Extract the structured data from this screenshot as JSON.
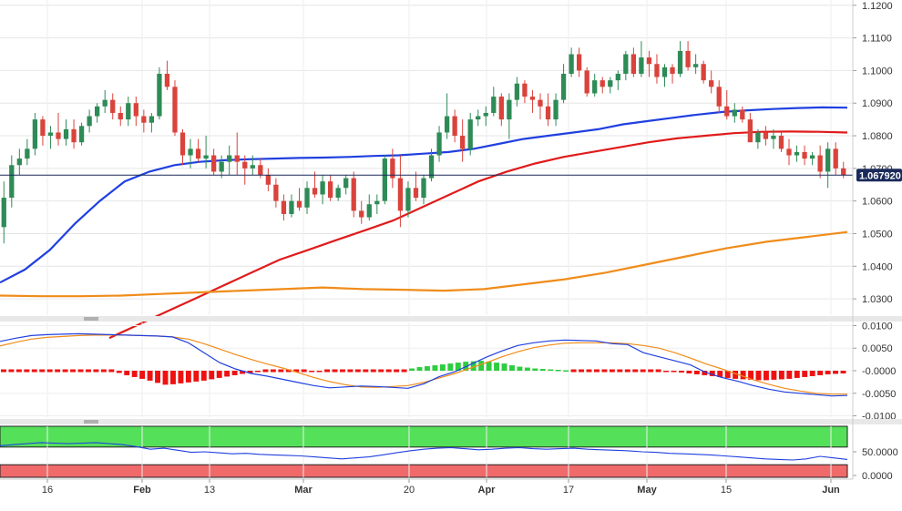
{
  "chart_data": [
    {
      "type": "candlestick",
      "title": "",
      "yaxis_position": "right",
      "ylim": [
        1.025,
        1.1205
      ],
      "ytick_labels": [
        "1.1200",
        "1.1100",
        "1.1000",
        "1.0900",
        "1.0800",
        "1.0700",
        "1.0600",
        "1.0500",
        "1.0400",
        "1.0300"
      ],
      "ytick_values": [
        1.12,
        1.11,
        1.1,
        1.09,
        1.08,
        1.07,
        1.06,
        1.05,
        1.04,
        1.03
      ],
      "current_price": 1.06792,
      "current_price_label": "1.067920",
      "bull_color": "#2e8b57",
      "bear_color": "#d9433b",
      "candles_ohlc": [
        [
          1.052,
          1.066,
          1.047,
          1.061
        ],
        [
          1.061,
          1.074,
          1.058,
          1.071
        ],
        [
          1.071,
          1.076,
          1.068,
          1.073
        ],
        [
          1.073,
          1.079,
          1.071,
          1.076
        ],
        [
          1.076,
          1.087,
          1.074,
          1.085
        ],
        [
          1.085,
          1.086,
          1.077,
          1.08
        ],
        [
          1.08,
          1.083,
          1.076,
          1.081
        ],
        [
          1.081,
          1.087,
          1.077,
          1.079
        ],
        [
          1.079,
          1.085,
          1.077,
          1.082
        ],
        [
          1.082,
          1.085,
          1.076,
          1.078
        ],
        [
          1.078,
          1.084,
          1.077,
          1.083
        ],
        [
          1.083,
          1.088,
          1.081,
          1.086
        ],
        [
          1.086,
          1.09,
          1.084,
          1.089
        ],
        [
          1.089,
          1.094,
          1.087,
          1.091
        ],
        [
          1.091,
          1.093,
          1.085,
          1.087
        ],
        [
          1.087,
          1.089,
          1.083,
          1.085
        ],
        [
          1.085,
          1.092,
          1.083,
          1.09
        ],
        [
          1.09,
          1.092,
          1.083,
          1.086
        ],
        [
          1.086,
          1.088,
          1.081,
          1.084
        ],
        [
          1.084,
          1.087,
          1.081,
          1.086
        ],
        [
          1.086,
          1.101,
          1.085,
          1.099
        ],
        [
          1.099,
          1.103,
          1.094,
          1.095
        ],
        [
          1.095,
          1.097,
          1.08,
          1.081
        ],
        [
          1.081,
          1.082,
          1.071,
          1.074
        ],
        [
          1.074,
          1.079,
          1.07,
          1.076
        ],
        [
          1.076,
          1.079,
          1.072,
          1.073
        ],
        [
          1.073,
          1.08,
          1.07,
          1.074
        ],
        [
          1.074,
          1.076,
          1.068,
          1.069
        ],
        [
          1.069,
          1.074,
          1.067,
          1.072
        ],
        [
          1.072,
          1.077,
          1.068,
          1.074
        ],
        [
          1.074,
          1.081,
          1.068,
          1.072
        ],
        [
          1.072,
          1.074,
          1.065,
          1.07
        ],
        [
          1.07,
          1.074,
          1.068,
          1.071
        ],
        [
          1.071,
          1.073,
          1.067,
          1.068
        ],
        [
          1.068,
          1.07,
          1.063,
          1.065
        ],
        [
          1.065,
          1.067,
          1.058,
          1.06
        ],
        [
          1.06,
          1.062,
          1.054,
          1.056
        ],
        [
          1.056,
          1.062,
          1.055,
          1.06
        ],
        [
          1.06,
          1.064,
          1.057,
          1.058
        ],
        [
          1.058,
          1.066,
          1.056,
          1.064
        ],
        [
          1.064,
          1.069,
          1.061,
          1.062
        ],
        [
          1.062,
          1.068,
          1.059,
          1.066
        ],
        [
          1.066,
          1.068,
          1.06,
          1.061
        ],
        [
          1.061,
          1.065,
          1.06,
          1.064
        ],
        [
          1.064,
          1.068,
          1.062,
          1.067
        ],
        [
          1.067,
          1.069,
          1.055,
          1.057
        ],
        [
          1.057,
          1.06,
          1.053,
          1.055
        ],
        [
          1.055,
          1.062,
          1.054,
          1.059
        ],
        [
          1.059,
          1.062,
          1.056,
          1.06
        ],
        [
          1.06,
          1.074,
          1.059,
          1.073
        ],
        [
          1.073,
          1.076,
          1.064,
          1.067
        ],
        [
          1.067,
          1.074,
          1.052,
          1.057
        ],
        [
          1.057,
          1.066,
          1.055,
          1.064
        ],
        [
          1.064,
          1.069,
          1.06,
          1.061
        ],
        [
          1.061,
          1.068,
          1.059,
          1.067
        ],
        [
          1.067,
          1.076,
          1.066,
          1.074
        ],
        [
          1.074,
          1.083,
          1.072,
          1.081
        ],
        [
          1.081,
          1.093,
          1.079,
          1.086
        ],
        [
          1.086,
          1.088,
          1.078,
          1.08
        ],
        [
          1.08,
          1.085,
          1.072,
          1.076
        ],
        [
          1.076,
          1.087,
          1.074,
          1.085
        ],
        [
          1.085,
          1.088,
          1.083,
          1.086
        ],
        [
          1.086,
          1.089,
          1.083,
          1.087
        ],
        [
          1.087,
          1.095,
          1.086,
          1.092
        ],
        [
          1.092,
          1.093,
          1.083,
          1.085
        ],
        [
          1.085,
          1.093,
          1.079,
          1.091
        ],
        [
          1.091,
          1.098,
          1.089,
          1.096
        ],
        [
          1.096,
          1.097,
          1.09,
          1.092
        ],
        [
          1.092,
          1.094,
          1.087,
          1.091
        ],
        [
          1.091,
          1.093,
          1.085,
          1.089
        ],
        [
          1.089,
          1.093,
          1.083,
          1.085
        ],
        [
          1.085,
          1.093,
          1.083,
          1.091
        ],
        [
          1.091,
          1.102,
          1.09,
          1.099
        ],
        [
          1.099,
          1.107,
          1.098,
          1.105
        ],
        [
          1.105,
          1.107,
          1.098,
          1.1
        ],
        [
          1.1,
          1.101,
          1.092,
          1.093
        ],
        [
          1.093,
          1.099,
          1.092,
          1.097
        ],
        [
          1.097,
          1.098,
          1.093,
          1.095
        ],
        [
          1.095,
          1.098,
          1.093,
          1.097
        ],
        [
          1.097,
          1.1,
          1.094,
          1.099
        ],
        [
          1.099,
          1.106,
          1.097,
          1.105
        ],
        [
          1.105,
          1.107,
          1.098,
          1.099
        ],
        [
          1.099,
          1.109,
          1.098,
          1.104
        ],
        [
          1.104,
          1.106,
          1.098,
          1.102
        ],
        [
          1.102,
          1.105,
          1.096,
          1.098
        ],
        [
          1.098,
          1.102,
          1.095,
          1.101
        ],
        [
          1.101,
          1.102,
          1.096,
          1.099
        ],
        [
          1.099,
          1.109,
          1.098,
          1.106
        ],
        [
          1.106,
          1.109,
          1.1,
          1.101
        ],
        [
          1.101,
          1.105,
          1.099,
          1.102
        ],
        [
          1.102,
          1.103,
          1.096,
          1.097
        ],
        [
          1.097,
          1.1,
          1.093,
          1.095
        ],
        [
          1.095,
          1.097,
          1.087,
          1.089
        ],
        [
          1.089,
          1.094,
          1.085,
          1.086
        ],
        [
          1.086,
          1.09,
          1.084,
          1.088
        ],
        [
          1.088,
          1.089,
          1.084,
          1.085
        ],
        [
          1.085,
          1.087,
          1.079,
          1.078
        ],
        [
          1.078,
          1.082,
          1.076,
          1.081
        ],
        [
          1.081,
          1.083,
          1.077,
          1.079
        ],
        [
          1.079,
          1.082,
          1.076,
          1.08
        ],
        [
          1.08,
          1.081,
          1.075,
          1.076
        ],
        [
          1.076,
          1.079,
          1.071,
          1.074
        ],
        [
          1.074,
          1.077,
          1.072,
          1.075
        ],
        [
          1.075,
          1.077,
          1.071,
          1.073
        ],
        [
          1.073,
          1.075,
          1.071,
          1.074
        ],
        [
          1.074,
          1.077,
          1.067,
          1.069
        ],
        [
          1.069,
          1.078,
          1.064,
          1.076
        ],
        [
          1.076,
          1.078,
          1.068,
          1.07
        ],
        [
          1.07,
          1.072,
          1.067,
          1.068
        ]
      ],
      "sma_series": [
        {
          "color": "#2040e0",
          "values": [
            1.035,
            1.039,
            1.045,
            1.053,
            1.06,
            1.066,
            1.069,
            1.071,
            1.072,
            1.0725,
            1.0728,
            1.073,
            1.0732,
            1.0733,
            1.0735,
            1.0738,
            1.074,
            1.0745,
            1.075,
            1.076,
            1.0775,
            1.079,
            1.08,
            1.081,
            1.082,
            1.0835,
            1.0845,
            1.0855,
            1.0865,
            1.0873,
            1.0878,
            1.0882,
            1.0885,
            1.0887,
            1.0886
          ]
        },
        {
          "color": "#e01b1b",
          "values": [
            1.018,
            1.022,
            1.026,
            1.03,
            1.034,
            1.038,
            1.042,
            1.045,
            1.048,
            1.051,
            1.054,
            1.058,
            1.062,
            1.066,
            1.069,
            1.0715,
            1.0735,
            1.075,
            1.0765,
            1.078,
            1.0792,
            1.08,
            1.0808,
            1.0812,
            1.0813,
            1.0812,
            1.081
          ]
        },
        {
          "color": "#f08c1a",
          "values": [
            1.031,
            1.0308,
            1.0308,
            1.031,
            1.0315,
            1.032,
            1.0325,
            1.033,
            1.0335,
            1.033,
            1.0328,
            1.0325,
            1.033,
            1.0345,
            1.036,
            1.038,
            1.0405,
            1.043,
            1.0455,
            1.0475,
            1.049,
            1.0505
          ]
        }
      ]
    },
    {
      "type": "macd",
      "ytick_labels": [
        "0.0100",
        "0.0050",
        "-0.0000",
        "-0.0050",
        "-0.0100"
      ],
      "ytick_values": [
        0.01,
        0.005,
        0,
        -0.005,
        -0.01
      ],
      "ylim": [
        -0.0103,
        0.0103
      ],
      "macd_color": "#2040e0",
      "signal_color": "#f08c1a",
      "hist_pos_color": "#2ecc40",
      "hist_neg_color": "#ee1111",
      "macd": [
        0.0065,
        0.0072,
        0.0078,
        0.008,
        0.0081,
        0.0082,
        0.0081,
        0.008,
        0.0079,
        0.0078,
        0.0077,
        0.0075,
        0.0062,
        0.004,
        0.0018,
        0.0004,
        -0.0006,
        -0.0012,
        -0.0019,
        -0.0026,
        -0.0033,
        -0.0038,
        -0.0036,
        -0.0034,
        -0.0035,
        -0.0037,
        -0.0039,
        -0.0029,
        -0.0013,
        -0.0002,
        0.0014,
        0.003,
        0.0044,
        0.0056,
        0.0062,
        0.0066,
        0.0068,
        0.0067,
        0.0066,
        0.006,
        0.0058,
        0.004,
        0.0031,
        0.0022,
        0.0013,
        -0.0004,
        -0.0015,
        -0.0023,
        -0.0033,
        -0.0041,
        -0.0047,
        -0.005,
        -0.0053,
        -0.0056,
        -0.0055
      ],
      "signal": [
        0.0055,
        0.0063,
        0.007,
        0.0074,
        0.0076,
        0.0078,
        0.0079,
        0.0079,
        0.0079,
        0.0078,
        0.0077,
        0.0075,
        0.007,
        0.006,
        0.0048,
        0.0036,
        0.0025,
        0.0015,
        0.0006,
        -0.0004,
        -0.0015,
        -0.0024,
        -0.0031,
        -0.0036,
        -0.0037,
        -0.0035,
        -0.0033,
        -0.0026,
        -0.0016,
        -0.0006,
        0.0006,
        0.0018,
        0.0031,
        0.0042,
        0.0051,
        0.0057,
        0.0061,
        0.0062,
        0.0062,
        0.0062,
        0.006,
        0.0056,
        0.005,
        0.004,
        0.0028,
        0.0015,
        0.0004,
        -0.0008,
        -0.002,
        -0.003,
        -0.0039,
        -0.0045,
        -0.005,
        -0.0052,
        -0.0052
      ],
      "histogram": [
        0.0,
        0.0,
        0.0,
        0.0,
        0.0,
        0.0,
        0.0,
        0.0,
        0.0,
        0.0,
        0.0,
        0.0,
        0.0,
        0.0,
        0.0,
        -0.0005,
        -0.001,
        -0.0014,
        -0.0018,
        -0.0022,
        -0.0027,
        -0.0031,
        -0.003,
        -0.0028,
        -0.0026,
        -0.0024,
        -0.0022,
        -0.0019,
        -0.0016,
        -0.0013,
        -0.001,
        -0.0007,
        -0.0005,
        -0.0003,
        0.0,
        0.0,
        0.0,
        0.0,
        0.0,
        0.0,
        -0.0001,
        -0.0001,
        0.0,
        0.0,
        0.0,
        0.0,
        0.0,
        0.0,
        0.0,
        0.0,
        0.0,
        0.0,
        0.0,
        0.0005,
        0.0008,
        0.001,
        0.0012,
        0.0014,
        0.0016,
        0.0018,
        0.002,
        0.0021,
        0.0022,
        0.002,
        0.0018,
        0.0016,
        0.0012,
        0.0009,
        0.0007,
        0.0005,
        0.0004,
        0.0003,
        0.0002,
        0.0001,
        0.0,
        0.0,
        0.0,
        0.0,
        0.0,
        0.0,
        0.0,
        0.0,
        0.0,
        0.0,
        0.0,
        0.0,
        -0.0001,
        -0.0002,
        -0.0004,
        -0.0006,
        -0.0008,
        -0.001,
        -0.0012,
        -0.0014,
        -0.0016,
        -0.0018,
        -0.0019,
        -0.002,
        -0.0021,
        -0.0021,
        -0.002,
        -0.0019,
        -0.0018,
        -0.0016,
        -0.0014,
        -0.0012,
        -0.001,
        -0.0008,
        -0.0007,
        -0.0006
      ]
    },
    {
      "type": "rsi",
      "ytick_labels": [
        "50.0000",
        "0.0000"
      ],
      "ytick_values": [
        50,
        0
      ],
      "ylim": [
        0,
        100
      ],
      "overbought_color": "#55e05a",
      "oversold_color": "#f06a6a",
      "line_color": "#2040e0",
      "values": [
        62,
        64,
        66,
        68,
        67,
        66,
        67,
        68,
        66,
        64,
        60,
        55,
        57,
        53,
        49,
        50,
        48,
        46,
        47,
        45,
        44,
        43,
        42,
        40,
        38,
        36,
        38,
        40,
        44,
        48,
        52,
        55,
        57,
        58,
        56,
        54,
        55,
        57,
        58,
        56,
        55,
        56,
        57,
        55,
        54,
        53,
        52,
        50,
        49,
        47,
        46,
        45,
        44,
        42,
        40,
        38,
        36,
        35,
        34,
        36,
        41,
        38,
        35
      ]
    }
  ],
  "x_axis_labels": [
    "16",
    "Feb",
    "13",
    "Mar",
    "20",
    "Apr",
    "17",
    "May",
    "15",
    "Jun"
  ],
  "x_axis_bold": [
    false,
    true,
    false,
    true,
    false,
    true,
    false,
    true,
    false,
    true
  ]
}
